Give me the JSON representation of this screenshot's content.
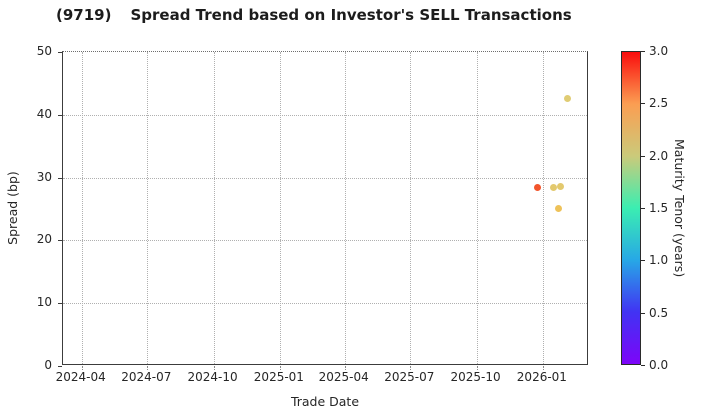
{
  "title": {
    "code": "(9719)",
    "text": "Spread Trend based on Investor's SELL Transactions"
  },
  "colors": {
    "background": "#ffffff",
    "text": "#262626",
    "spine": "#3c3c3c",
    "grid": "#b0b0b0"
  },
  "chart_data": {
    "type": "scatter",
    "title": "(9719)   Spread Trend based on Investor's SELL Transactions",
    "xlabel": "Trade Date",
    "ylabel": "Spread (bp)",
    "grid": "dotted",
    "legend": "none",
    "ylim": [
      0,
      50
    ],
    "y_ticks": [
      0,
      10,
      20,
      30,
      40,
      50
    ],
    "x_domain": [
      "2024-03-06",
      "2026-03-06"
    ],
    "x_ticks": [
      {
        "date": "2024-04-01",
        "label": "2024-04"
      },
      {
        "date": "2024-07-01",
        "label": "2024-07"
      },
      {
        "date": "2024-10-01",
        "label": "2024-10"
      },
      {
        "date": "2025-01-01",
        "label": "2025-01"
      },
      {
        "date": "2025-04-01",
        "label": "2025-04"
      },
      {
        "date": "2025-07-01",
        "label": "2025-07"
      },
      {
        "date": "2025-10-01",
        "label": "2025-10"
      },
      {
        "date": "2026-01-01",
        "label": "2026-01"
      }
    ],
    "points": [
      {
        "date": "2025-12-24",
        "spread_bp": 28.5,
        "maturity_tenor_years": 2.8,
        "color": "#f2552c"
      },
      {
        "date": "2026-01-16",
        "spread_bp": 28.5,
        "maturity_tenor_years": 2.05,
        "color": "#e3c96e"
      },
      {
        "date": "2026-01-25",
        "spread_bp": 28.6,
        "maturity_tenor_years": 2.05,
        "color": "#e3c96e"
      },
      {
        "date": "2026-01-23",
        "spread_bp": 25.1,
        "maturity_tenor_years": 2.15,
        "color": "#eec259"
      },
      {
        "date": "2026-02-04",
        "spread_bp": 42.6,
        "maturity_tenor_years": 2.0,
        "color": "#e0cc74"
      }
    ],
    "colorbar": {
      "label": "Maturity Tenor (years)",
      "min": 0.0,
      "max": 3.0,
      "tick_labels": [
        "0.0",
        "0.5",
        "1.0",
        "1.5",
        "2.0",
        "2.5",
        "3.0"
      ],
      "gradient_stops_top_to_bottom": [
        {
          "value": 3.0,
          "color": "#f90d0d"
        },
        {
          "value": 2.5,
          "color": "#fb9e52"
        },
        {
          "value": 2.0,
          "color": "#cbca7a"
        },
        {
          "value": 1.5,
          "color": "#3beeb1"
        },
        {
          "value": 1.0,
          "color": "#27a8e6"
        },
        {
          "value": 0.5,
          "color": "#4133f3"
        },
        {
          "value": 0.0,
          "color": "#7d05f8"
        }
      ]
    }
  }
}
